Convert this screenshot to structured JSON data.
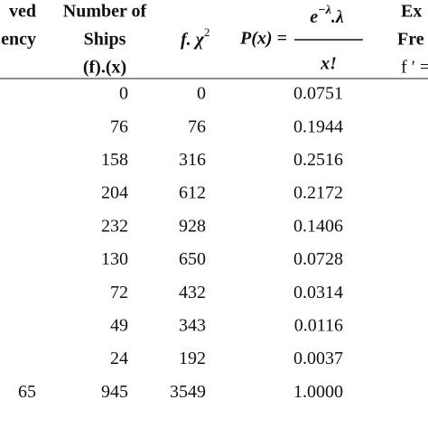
{
  "header": {
    "observed": [
      "ved",
      "ency"
    ],
    "ships": [
      "Number of",
      "Ships",
      "(f).(x)"
    ],
    "fchi": [
      "f. χ",
      "2"
    ],
    "prob": {
      "lhs": "P(x) =",
      "base": "e",
      "exp": "−λ",
      "rest": ".λ",
      "den": "x!"
    },
    "expected": [
      "Ex",
      "Fre",
      "f ′ ="
    ]
  },
  "table": {
    "rows": [
      [
        "0",
        "0",
        "0.0751"
      ],
      [
        "76",
        "76",
        "0.1944"
      ],
      [
        "158",
        "316",
        "0.2516"
      ],
      [
        "204",
        "612",
        "0.2172"
      ],
      [
        "232",
        "928",
        "0.1406"
      ],
      [
        "130",
        "650",
        "0.0728"
      ],
      [
        "72",
        "432",
        "0.0314"
      ],
      [
        "49",
        "343",
        "0.0116"
      ],
      [
        "24",
        "192",
        "0.0037"
      ]
    ],
    "total": {
      "observed": "65",
      "ships": "945",
      "fchi": "3549",
      "prob": "1.0000"
    }
  }
}
